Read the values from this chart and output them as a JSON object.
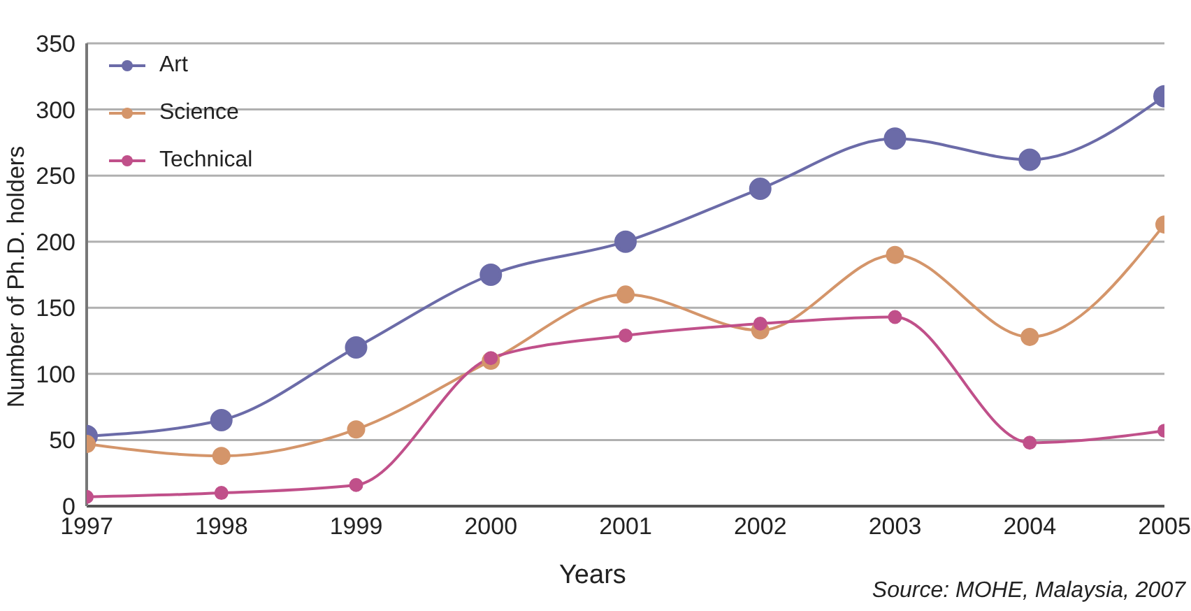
{
  "chart_data": {
    "type": "line",
    "xlabel": "Years",
    "ylabel": "Number of Ph.D. holders",
    "x": [
      1997,
      1998,
      1999,
      2000,
      2001,
      2002,
      2003,
      2004,
      2005
    ],
    "series": [
      {
        "name": "Art",
        "color": "#6b6ba8",
        "values": [
          53,
          65,
          120,
          175,
          200,
          240,
          278,
          262,
          310
        ]
      },
      {
        "name": "Science",
        "color": "#d4956a",
        "values": [
          47,
          38,
          58,
          110,
          160,
          133,
          190,
          128,
          213
        ]
      },
      {
        "name": "Technical",
        "color": "#c0508a",
        "values": [
          7,
          10,
          16,
          112,
          129,
          138,
          143,
          48,
          57
        ]
      }
    ],
    "xlim": [
      1997,
      2005
    ],
    "xticks": [
      1997,
      1998,
      1999,
      2000,
      2001,
      2002,
      2003,
      2004,
      2005
    ],
    "ylim": [
      0,
      350
    ],
    "yticks": [
      0,
      50,
      100,
      150,
      200,
      250,
      300,
      350
    ],
    "grid": "y",
    "legend": "top left",
    "marker": "circle",
    "line_style": "solid",
    "annotations": [
      "Source: MOHE, Malaysia, 2007"
    ]
  }
}
